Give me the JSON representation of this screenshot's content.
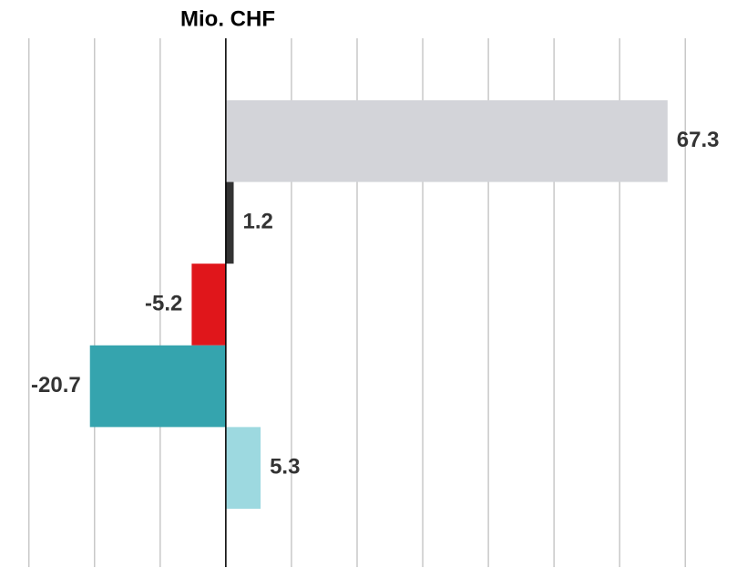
{
  "chart_data": {
    "type": "bar",
    "orientation": "horizontal",
    "title": "Mio. CHF",
    "categories": [
      null,
      null,
      null,
      null,
      null
    ],
    "series": [
      {
        "name": null,
        "colors": [
          "#d3d4d9",
          "#333333",
          "#e0161b",
          "#35a4ae",
          "#9dd9e0"
        ],
        "values": [
          67.3,
          1.2,
          -5.2,
          -20.7,
          5.3
        ]
      }
    ],
    "xlim": [
      -34.4,
      79.4
    ],
    "xticks": [
      -30,
      -20,
      -10,
      0,
      10,
      20,
      30,
      40,
      50,
      60,
      70
    ],
    "grid": true
  }
}
